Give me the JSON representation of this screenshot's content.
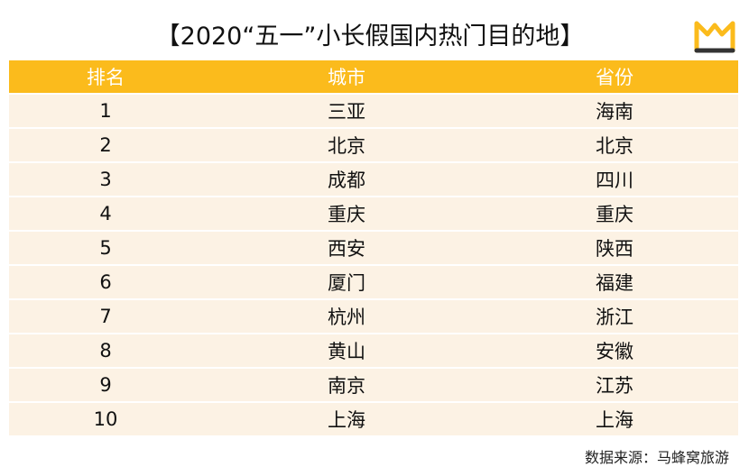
{
  "header": {
    "title": "【2020“五一”小长假国内热门目的地】"
  },
  "table": {
    "columns": [
      "排名",
      "城市",
      "省份"
    ],
    "rows": [
      [
        "1",
        "三亚",
        "海南"
      ],
      [
        "2",
        "北京",
        "北京"
      ],
      [
        "3",
        "成都",
        "四川"
      ],
      [
        "4",
        "重庆",
        "重庆"
      ],
      [
        "5",
        "西安",
        "陕西"
      ],
      [
        "6",
        "厦门",
        "福建"
      ],
      [
        "7",
        "杭州",
        "浙江"
      ],
      [
        "8",
        "黄山",
        "安徽"
      ],
      [
        "9",
        "南京",
        "江苏"
      ],
      [
        "10",
        "上海",
        "上海"
      ]
    ]
  },
  "footer": {
    "source": "数据来源：马蜂窝旅游"
  }
}
